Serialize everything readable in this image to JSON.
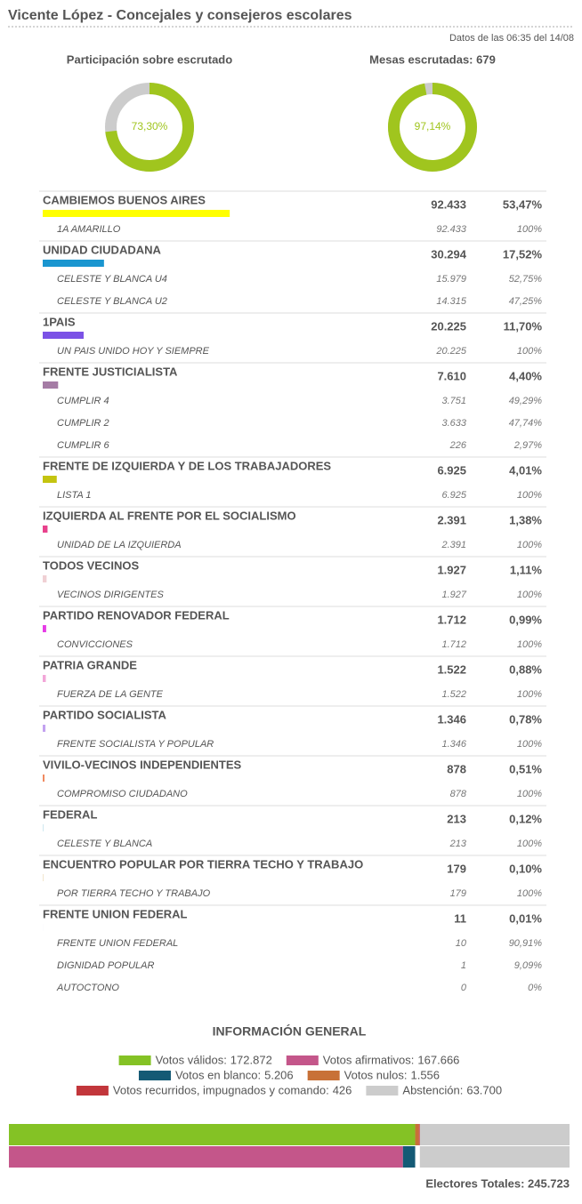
{
  "header": {
    "title": "Vicente López - Concejales y consejeros escolares",
    "timestamp": "Datos de las 06:35 del 14/08"
  },
  "gauges": [
    {
      "title": "Participación sobre escrutado",
      "value": 73.3,
      "label": "73,30%"
    },
    {
      "title": "Mesas escrutadas: 679",
      "value": 97.14,
      "label": "97,14%"
    }
  ],
  "parties": [
    {
      "name": "CAMBIEMOS BUENOS AIRES",
      "votes": "92.433",
      "pct": 53.47,
      "pct_label": "53,47%",
      "color": "#ffff00",
      "lists": [
        {
          "name": "1A AMARILLO",
          "votes": "92.433",
          "pct": "100%"
        }
      ]
    },
    {
      "name": "UNIDAD CIUDADANA",
      "votes": "30.294",
      "pct": 17.52,
      "pct_label": "17,52%",
      "color": "#1a96d0",
      "lists": [
        {
          "name": "CELESTE Y BLANCA U4",
          "votes": "15.979",
          "pct": "52,75%"
        },
        {
          "name": "CELESTE Y BLANCA U2",
          "votes": "14.315",
          "pct": "47,25%"
        }
      ]
    },
    {
      "name": "1PAIS",
      "votes": "20.225",
      "pct": 11.7,
      "pct_label": "11,70%",
      "color": "#7b52e6",
      "lists": [
        {
          "name": "UN PAIS UNIDO HOY Y SIEMPRE",
          "votes": "20.225",
          "pct": "100%"
        }
      ]
    },
    {
      "name": "FRENTE JUSTICIALISTA",
      "votes": "7.610",
      "pct": 4.4,
      "pct_label": "4,40%",
      "color": "#a57ca5",
      "lists": [
        {
          "name": "CUMPLIR 4",
          "votes": "3.751",
          "pct": "49,29%"
        },
        {
          "name": "CUMPLIR 2",
          "votes": "3.633",
          "pct": "47,74%"
        },
        {
          "name": "CUMPLIR 6",
          "votes": "226",
          "pct": "2,97%"
        }
      ]
    },
    {
      "name": "FRENTE DE IZQUIERDA Y DE LOS TRABAJADORES",
      "votes": "6.925",
      "pct": 4.01,
      "pct_label": "4,01%",
      "color": "#c4c410",
      "lists": [
        {
          "name": "LISTA 1",
          "votes": "6.925",
          "pct": "100%"
        }
      ]
    },
    {
      "name": "IZQUIERDA AL FRENTE POR EL SOCIALISMO",
      "votes": "2.391",
      "pct": 1.38,
      "pct_label": "1,38%",
      "color": "#e8418c",
      "lists": [
        {
          "name": "UNIDAD DE LA IZQUIERDA",
          "votes": "2.391",
          "pct": "100%"
        }
      ]
    },
    {
      "name": "TODOS VECINOS",
      "votes": "1.927",
      "pct": 1.11,
      "pct_label": "1,11%",
      "color": "#f0d0d4",
      "lists": [
        {
          "name": "VECINOS DIRIGENTES",
          "votes": "1.927",
          "pct": "100%"
        }
      ]
    },
    {
      "name": "PARTIDO RENOVADOR FEDERAL",
      "votes": "1.712",
      "pct": 0.99,
      "pct_label": "0,99%",
      "color": "#e63be6",
      "lists": [
        {
          "name": "CONVICCIONES",
          "votes": "1.712",
          "pct": "100%"
        }
      ]
    },
    {
      "name": "PATRIA GRANDE",
      "votes": "1.522",
      "pct": 0.88,
      "pct_label": "0,88%",
      "color": "#f2a6d8",
      "lists": [
        {
          "name": "FUERZA DE LA GENTE",
          "votes": "1.522",
          "pct": "100%"
        }
      ]
    },
    {
      "name": "PARTIDO SOCIALISTA",
      "votes": "1.346",
      "pct": 0.78,
      "pct_label": "0,78%",
      "color": "#c3a2f0",
      "lists": [
        {
          "name": "FRENTE SOCIALISTA Y POPULAR",
          "votes": "1.346",
          "pct": "100%"
        }
      ]
    },
    {
      "name": "VIVILO-VECINOS INDEPENDIENTES",
      "votes": "878",
      "pct": 0.51,
      "pct_label": "0,51%",
      "color": "#f08a60",
      "lists": [
        {
          "name": "COMPROMISO CIUDADANO",
          "votes": "878",
          "pct": "100%"
        }
      ]
    },
    {
      "name": "FEDERAL",
      "votes": "213",
      "pct": 0.12,
      "pct_label": "0,12%",
      "color": "#9ad0e0",
      "lists": [
        {
          "name": "CELESTE Y BLANCA",
          "votes": "213",
          "pct": "100%"
        }
      ]
    },
    {
      "name": "ENCUENTRO POPULAR POR TIERRA TECHO Y TRABAJO",
      "votes": "179",
      "pct": 0.1,
      "pct_label": "0,10%",
      "color": "#e0c080",
      "lists": [
        {
          "name": "POR TIERRA TECHO Y TRABAJO",
          "votes": "179",
          "pct": "100%"
        }
      ]
    },
    {
      "name": "FRENTE UNION FEDERAL",
      "votes": "11",
      "pct": 0.01,
      "pct_label": "0,01%",
      "color": "#a0a0d0",
      "lists": [
        {
          "name": "FRENTE UNION FEDERAL",
          "votes": "10",
          "pct": "90,91%"
        },
        {
          "name": "DIGNIDAD POPULAR",
          "votes": "1",
          "pct": "9,09%"
        },
        {
          "name": "AUTOCTONO",
          "votes": "0",
          "pct": "0%"
        }
      ]
    }
  ],
  "general": {
    "title": "INFORMACIÓN GENERAL",
    "items": [
      {
        "label": "Votos válidos:",
        "value": 172872,
        "value_label": "172.872",
        "color": "#84c225"
      },
      {
        "label": "Votos afirmativos:",
        "value": 167666,
        "value_label": "167.666",
        "color": "#c4568a"
      },
      {
        "label": "Votos en blanco:",
        "value": 5206,
        "value_label": "5.206",
        "color": "#145a75"
      },
      {
        "label": "Votos nulos:",
        "value": 1556,
        "value_label": "1.556",
        "color": "#c87137"
      },
      {
        "label": "Votos recurridos, impugnados y comando:",
        "value": 426,
        "value_label": "426",
        "color": "#c2363b"
      },
      {
        "label": "Abstención:",
        "value": 63700,
        "value_label": "63.700",
        "color": "#cccccc"
      }
    ],
    "total": "Electores Totales: 245.723"
  }
}
